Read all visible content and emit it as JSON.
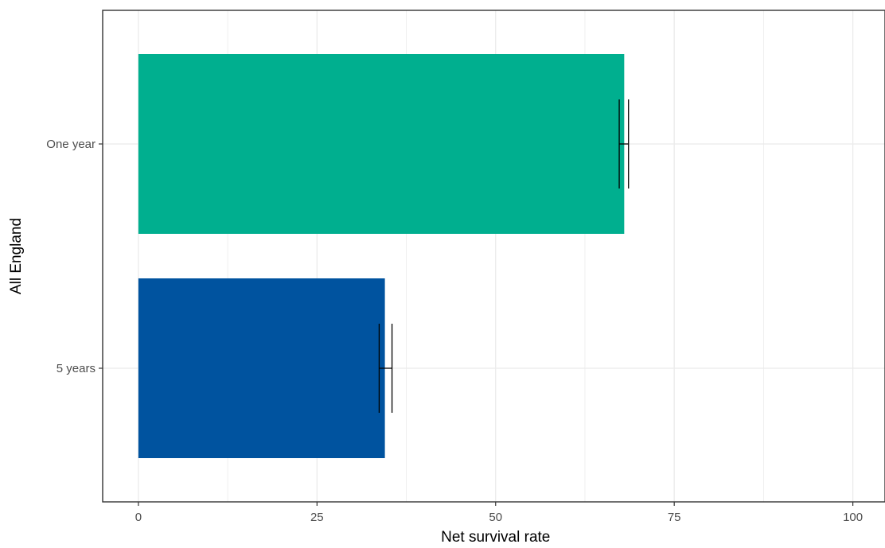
{
  "chart_data": {
    "type": "bar",
    "orientation": "horizontal",
    "categories": [
      "One year",
      "5 years"
    ],
    "values": [
      68.0,
      34.5
    ],
    "error_bars": [
      {
        "lower": 67.3,
        "upper": 68.6
      },
      {
        "lower": 33.7,
        "upper": 35.5
      }
    ],
    "bar_colors": [
      "#00AF8F",
      "#00539F"
    ],
    "xlabel": "Net survival rate",
    "ylabel": "All England",
    "xlim": [
      -5,
      104.5
    ],
    "xticks": [
      0,
      25,
      50,
      75,
      100
    ],
    "xtick_labels": [
      "0",
      "25",
      "50",
      "75",
      "100"
    ],
    "grid": true,
    "gridline_color": "#ebebeb",
    "panel_border_color": "#333333",
    "error_bar_color": "#000000"
  }
}
